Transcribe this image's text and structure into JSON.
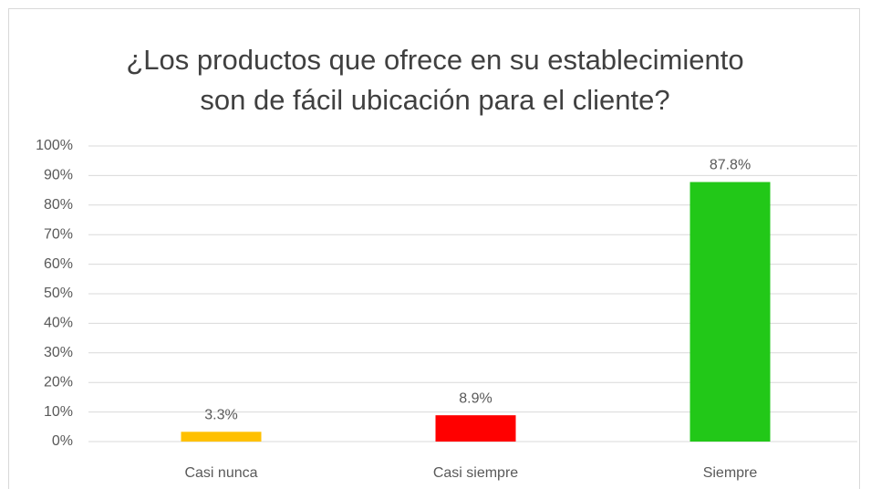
{
  "chart_data": {
    "type": "bar",
    "title": "¿Los productos que ofrece en su establecimiento son de fácil ubicación para el cliente?",
    "categories": [
      "Casi nunca",
      "Casi siempre",
      "Siempre"
    ],
    "values": [
      3.3,
      8.9,
      87.8
    ],
    "value_labels": [
      "3.3%",
      "8.9%",
      "87.8%"
    ],
    "colors": [
      "#ffc000",
      "#ff0000",
      "#22c818"
    ],
    "ylim": [
      0,
      100
    ],
    "yticks": [
      {
        "value": 0,
        "label": "0%"
      },
      {
        "value": 10,
        "label": "10%"
      },
      {
        "value": 20,
        "label": "20%"
      },
      {
        "value": 30,
        "label": "30%"
      },
      {
        "value": 40,
        "label": "40%"
      },
      {
        "value": 50,
        "label": "50%"
      },
      {
        "value": 60,
        "label": "60%"
      },
      {
        "value": 70,
        "label": "70%"
      },
      {
        "value": 80,
        "label": "80%"
      },
      {
        "value": 90,
        "label": "90%"
      },
      {
        "value": 100,
        "label": "100%"
      }
    ],
    "grid": true
  }
}
